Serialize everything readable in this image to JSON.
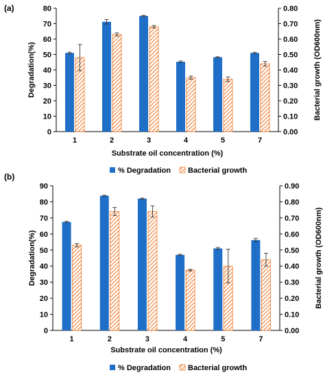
{
  "chart_data": [
    {
      "type": "bar",
      "panel_label": "(a)",
      "categories": [
        "1",
        "2",
        "3",
        "4",
        "5",
        "7"
      ],
      "xlabel": "Substrate oil concentration (%)",
      "ylabel": "Degradation(%)",
      "y2label": "Bacterial growth (OD600nm)",
      "ylim": [
        0,
        80
      ],
      "y2lim": [
        0,
        0.8
      ],
      "yticks": [
        "0",
        "10",
        "20",
        "30",
        "40",
        "50",
        "60",
        "70",
        "80"
      ],
      "y2ticks": [
        "0.00",
        "0.10",
        "0.20",
        "0.30",
        "0.40",
        "0.50",
        "0.60",
        "0.70",
        "0.80"
      ],
      "series": [
        {
          "name": "% Degradation",
          "axis": "left",
          "color": "#1f6fc9",
          "pattern": "solid",
          "values": [
            51,
            71.2,
            75,
            45.3,
            48.2,
            51
          ],
          "errors": [
            0.5,
            1.5,
            0.4,
            0.5,
            0.3,
            0.4
          ]
        },
        {
          "name": "Bacterial growth",
          "axis": "right",
          "color": "#f07a2a",
          "pattern": "hatched",
          "values": [
            0.48,
            0.63,
            0.68,
            0.35,
            0.34,
            0.44
          ],
          "errors": [
            0.085,
            0.01,
            0.008,
            0.01,
            0.015,
            0.015
          ]
        }
      ],
      "legend": [
        "% Degradation",
        "Bacterial growth"
      ],
      "legend_position": "bottom",
      "grid": false
    },
    {
      "type": "bar",
      "panel_label": "(b)",
      "categories": [
        "1",
        "2",
        "3",
        "4",
        "5",
        "7"
      ],
      "xlabel": "Substrate oil concentration (%)",
      "ylabel": "Degradation(%)",
      "y2label": "Bacterial growth (OD600nm)",
      "ylim": [
        0,
        90
      ],
      "y2lim": [
        0,
        0.9
      ],
      "yticks": [
        "0",
        "10",
        "20",
        "30",
        "40",
        "50",
        "60",
        "70",
        "80",
        "90"
      ],
      "y2ticks": [
        "0.00",
        "0.10",
        "0.20",
        "0.30",
        "0.40",
        "0.50",
        "0.60",
        "0.70",
        "0.80",
        "0.90"
      ],
      "series": [
        {
          "name": "% Degradation",
          "axis": "left",
          "color": "#1f6fc9",
          "pattern": "solid",
          "values": [
            67.5,
            83.8,
            82,
            47,
            51,
            56.2
          ],
          "errors": [
            0.4,
            0.3,
            0.3,
            0.4,
            0.6,
            1.0
          ]
        },
        {
          "name": "Bacterial growth",
          "axis": "right",
          "color": "#f07a2a",
          "pattern": "hatched",
          "values": [
            0.53,
            0.74,
            0.74,
            0.375,
            0.4,
            0.44
          ],
          "errors": [
            0.01,
            0.025,
            0.035,
            0.005,
            0.105,
            0.04
          ]
        }
      ],
      "legend": [
        "% Degradation",
        "Bacterial growth"
      ],
      "legend_position": "bottom",
      "grid": false
    }
  ]
}
